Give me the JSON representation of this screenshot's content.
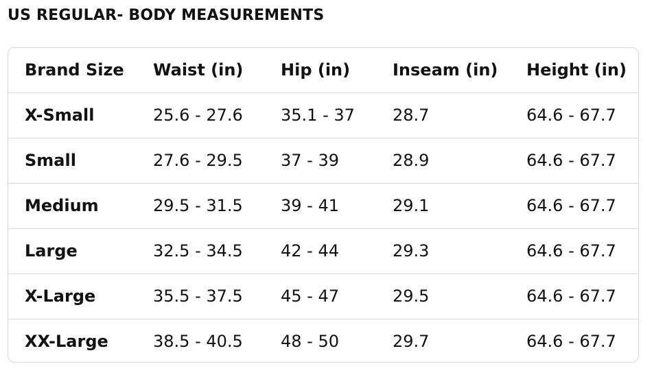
{
  "title": "US REGULAR- BODY MEASUREMENTS",
  "table": {
    "header": [
      "Brand Size",
      "Waist (in)",
      "Hip (in)",
      "Inseam (in)",
      "Height (in)"
    ],
    "rows": [
      [
        "X-Small",
        "25.6 - 27.6",
        "35.1 - 37",
        "28.7",
        "64.6 - 67.7"
      ],
      [
        "Small",
        "27.6 - 29.5",
        "37 - 39",
        "28.9",
        "64.6 - 67.7"
      ],
      [
        "Medium",
        "29.5 - 31.5",
        "39 - 41",
        "29.1",
        "64.6 - 67.7"
      ],
      [
        "Large",
        "32.5 - 34.5",
        "42 - 44",
        "29.3",
        "64.6 - 67.7"
      ],
      [
        "X-Large",
        "35.5 - 37.5",
        "45 - 47",
        "29.5",
        "64.6 - 67.7"
      ],
      [
        "XX-Large",
        "38.5 - 40.5",
        "48 - 50",
        "29.7",
        "64.6 - 67.7"
      ]
    ]
  }
}
